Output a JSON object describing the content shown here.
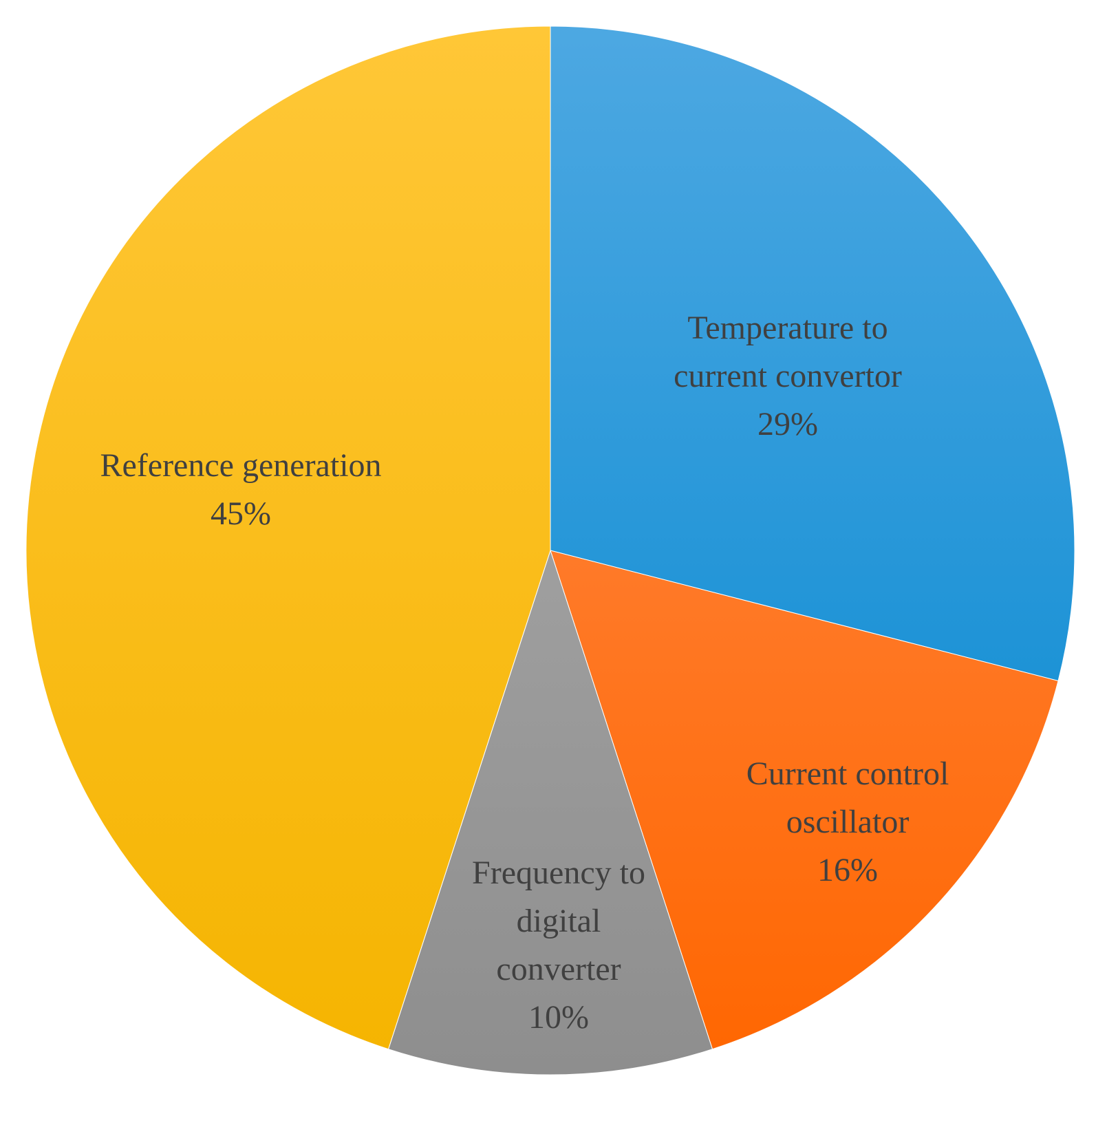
{
  "chart_data": {
    "type": "pie",
    "title": "",
    "slices": [
      {
        "label_lines": [
          "Temperature to",
          "current convertor"
        ],
        "value": 29,
        "value_label": "29%",
        "color_top": "#4DA8E2",
        "color_bottom": "#0086CF"
      },
      {
        "label_lines": [
          "Current control",
          "oscillator"
        ],
        "value": 16,
        "value_label": "16%",
        "color_top": "#FF8E52",
        "color_bottom": "#FF6600"
      },
      {
        "label_lines": [
          "Frequency to",
          "digital",
          "converter"
        ],
        "value": 10,
        "value_label": "10%",
        "color_top": "#B0B0B0",
        "color_bottom": "#8E8E8E"
      },
      {
        "label_lines": [
          "Reference generation"
        ],
        "value": 45,
        "value_label": "45%",
        "color_top": "#FFC737",
        "color_bottom": "#F5B400"
      }
    ],
    "start_angle_deg": 0,
    "direction": "clockwise",
    "legend": "none"
  }
}
